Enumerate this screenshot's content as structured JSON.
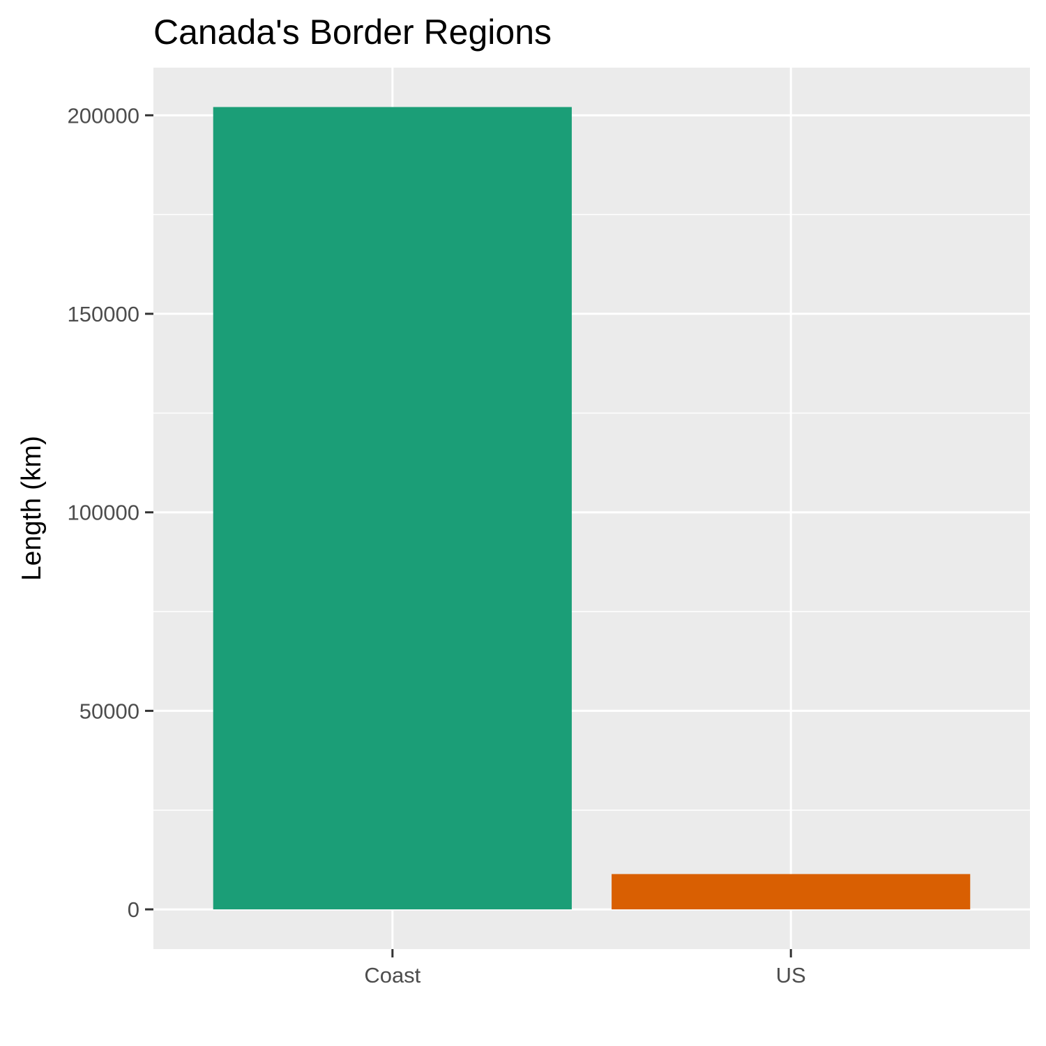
{
  "chart_data": {
    "type": "bar",
    "title": "Canada's Border Regions",
    "xlabel": "",
    "ylabel": "Length (km)",
    "categories": [
      "Coast",
      "US"
    ],
    "values": [
      202080,
      8891
    ],
    "ylim": [
      -10000,
      212000
    ],
    "yticks": [
      0,
      50000,
      100000,
      150000,
      200000
    ],
    "ytick_labels": [
      "0",
      "50000",
      "100000",
      "150000",
      "200000"
    ],
    "minor_yticks": [
      25000,
      75000,
      125000,
      175000
    ],
    "colors": [
      "#1b9e77",
      "#d95f02"
    ],
    "panel_background": "#ebebeb",
    "grid_color": "#ffffff",
    "grid": true,
    "legend": "none"
  }
}
